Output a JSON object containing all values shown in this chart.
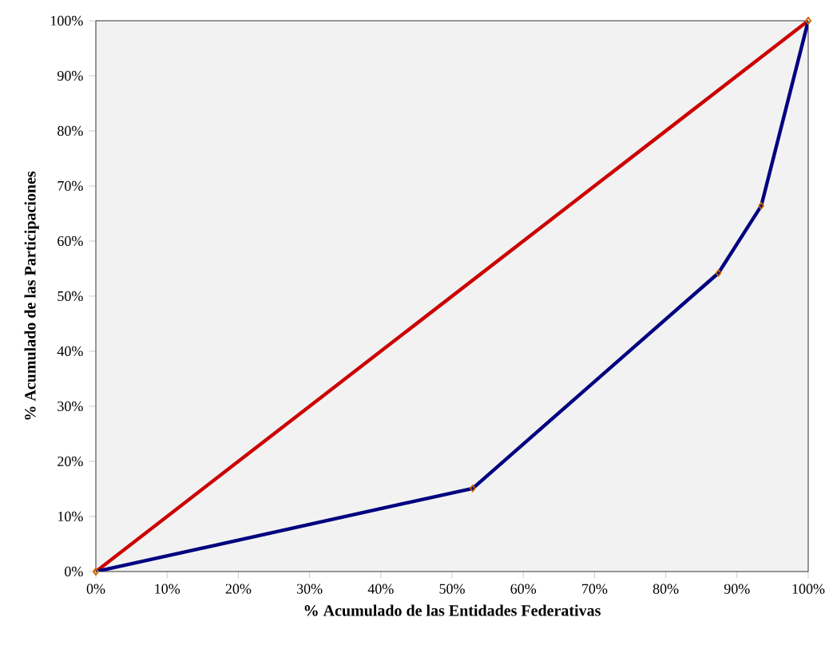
{
  "chart_data": {
    "type": "line",
    "xlabel": "% Acumulado de las Entidades Federativas",
    "ylabel": "% Acumulado de las Participaciones",
    "xlim": [
      0,
      100
    ],
    "ylim": [
      0,
      100
    ],
    "xticks": [
      {
        "value": 0,
        "label": "0%"
      },
      {
        "value": 10,
        "label": "10%"
      },
      {
        "value": 20,
        "label": "20%"
      },
      {
        "value": 30,
        "label": "30%"
      },
      {
        "value": 40,
        "label": "40%"
      },
      {
        "value": 50,
        "label": "50%"
      },
      {
        "value": 60,
        "label": "60%"
      },
      {
        "value": 70,
        "label": "70%"
      },
      {
        "value": 80,
        "label": "80%"
      },
      {
        "value": 90,
        "label": "90%"
      },
      {
        "value": 100,
        "label": "100%"
      }
    ],
    "yticks": [
      {
        "value": 0,
        "label": "0%"
      },
      {
        "value": 10,
        "label": "10%"
      },
      {
        "value": 20,
        "label": "20%"
      },
      {
        "value": 30,
        "label": "30%"
      },
      {
        "value": 40,
        "label": "40%"
      },
      {
        "value": 50,
        "label": "50%"
      },
      {
        "value": 60,
        "label": "60%"
      },
      {
        "value": 70,
        "label": "70%"
      },
      {
        "value": 80,
        "label": "80%"
      },
      {
        "value": 90,
        "label": "90%"
      },
      {
        "value": 100,
        "label": "100%"
      }
    ],
    "marker": "diamond",
    "grid": false,
    "series": [
      {
        "color": "#cc0000",
        "x": [
          0,
          100
        ],
        "values": [
          0,
          100
        ]
      },
      {
        "color": "#000080",
        "x": [
          0,
          52.9,
          87.4,
          93.4,
          100
        ],
        "values": [
          0,
          15.1,
          54.2,
          66.4,
          100
        ]
      }
    ]
  }
}
